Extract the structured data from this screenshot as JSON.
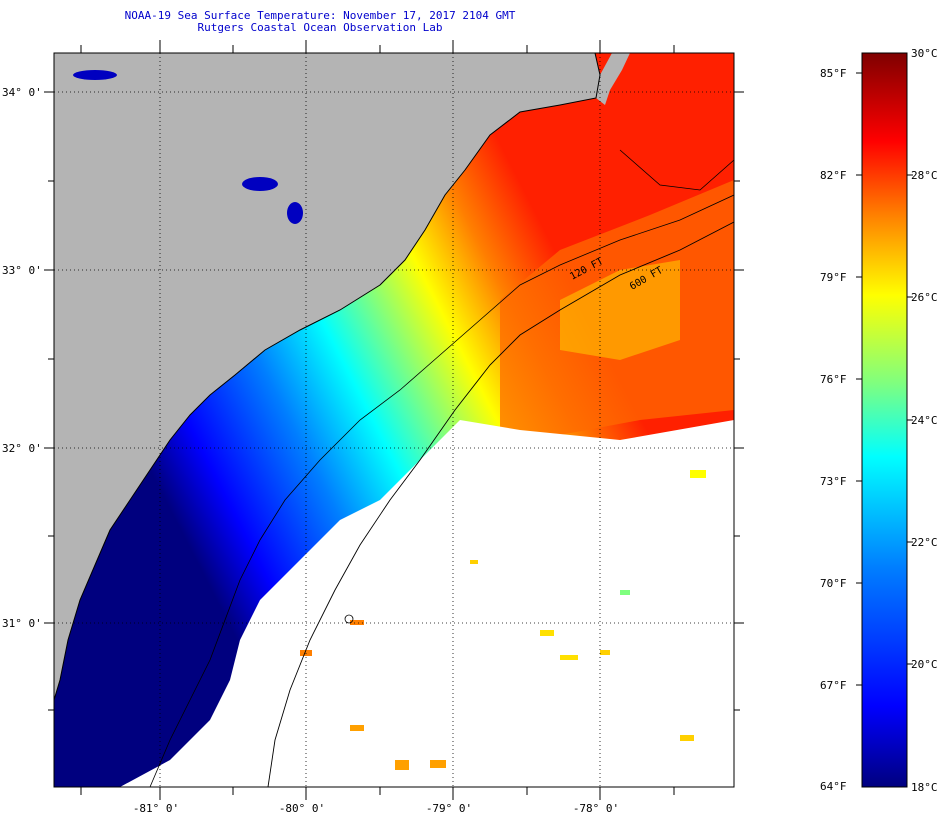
{
  "title": "NOAA-19 Sea Surface Temperature:  November 17, 2017 2104 GMT",
  "subtitle": "Rutgers Coastal Ocean Observation Lab",
  "map": {
    "lat_labels": [
      "34° 0'",
      "33° 0'",
      "32° 0'",
      "31° 0'"
    ],
    "lon_labels": [
      "-81° 0'",
      "-80° 0'",
      "-79° 0'",
      "-78° 0'"
    ],
    "isobaths": [
      "120 FT",
      "600 FT"
    ],
    "colors": {
      "land": "#b4b4b4",
      "cloud": "#ffffff",
      "coastline": "#000000"
    }
  },
  "colorbar": {
    "fahrenheit": [
      "85°F",
      "82°F",
      "79°F",
      "76°F",
      "73°F",
      "70°F",
      "67°F",
      "64°F"
    ],
    "celsius": [
      "30°C",
      "28°C",
      "26°C",
      "24°C",
      "22°C",
      "20°C",
      "18°C"
    ],
    "colors": [
      "#00007f",
      "#0000ff",
      "#007fff",
      "#00ffff",
      "#7fff7f",
      "#ffff00",
      "#ff7f00",
      "#ff0000",
      "#7f0000"
    ]
  }
}
